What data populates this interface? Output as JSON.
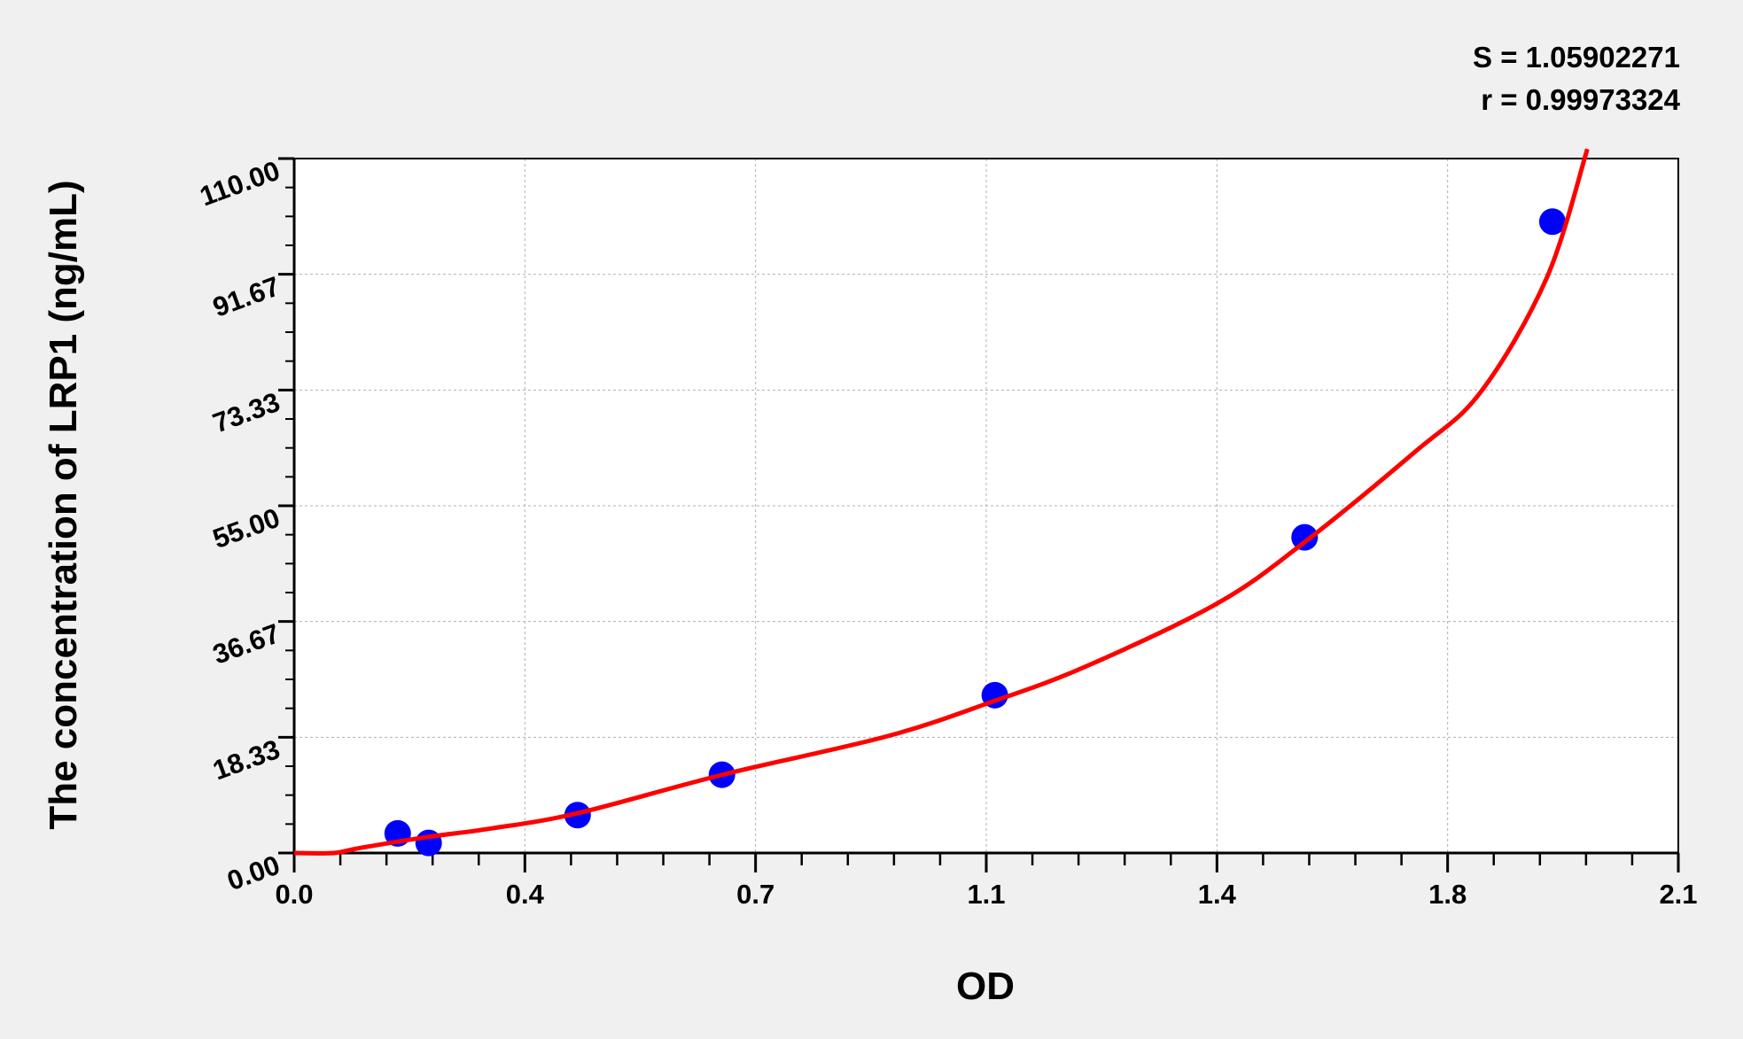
{
  "chart_data": {
    "type": "scatter",
    "title": "",
    "xlabel": "OD",
    "ylabel": "The concentration of LRP1 (ng/mL)",
    "xlim": [
      0.0,
      2.1
    ],
    "ylim": [
      0.0,
      110.0
    ],
    "x_tick_values": [
      0.0,
      0.35,
      0.7,
      1.05,
      1.4,
      1.75,
      2.1
    ],
    "x_tick_labels": [
      "0.0",
      "0.4",
      "0.7",
      "1.1",
      "1.4",
      "1.8",
      "2.1"
    ],
    "y_tick_values": [
      0,
      18.33,
      36.67,
      55,
      73.33,
      91.67,
      110
    ],
    "y_tick_labels": [
      "0.00",
      "18.33",
      "36.67",
      "55.00",
      "73.33",
      "91.67",
      "110.00"
    ],
    "grid": true,
    "points": {
      "x": [
        0.157,
        0.204,
        0.43,
        0.649,
        1.063,
        1.533,
        1.909
      ],
      "y": [
        3.1,
        1.6,
        6.0,
        12.4,
        25.0,
        50.0,
        100.0
      ],
      "color": "#0000ff"
    },
    "fit_curve": {
      "color": "#ff0000",
      "x": [
        0,
        0.06,
        0.1,
        0.2,
        0.3,
        0.43,
        0.65,
        0.9,
        1.06,
        1.2,
        1.4,
        1.53,
        1.7,
        1.8,
        1.9,
        1.962
      ],
      "y": [
        0,
        0,
        0.8,
        2.5,
        3.9,
        6.3,
        12.4,
        18.5,
        24.0,
        29.5,
        39.5,
        49.0,
        63.5,
        73,
        91,
        111.5
      ]
    },
    "annotations": {
      "s": "S = 1.05902271",
      "r": "r = 0.99973324"
    }
  }
}
